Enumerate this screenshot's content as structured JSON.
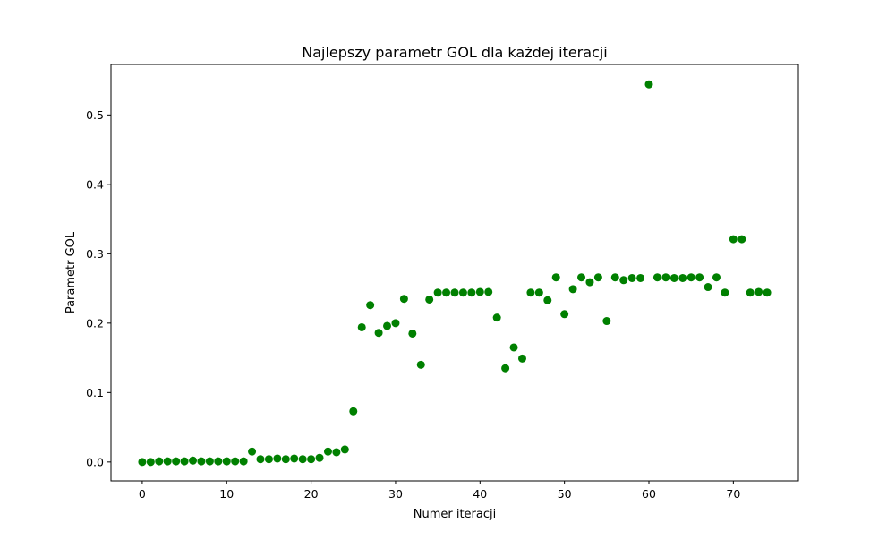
{
  "chart_data": {
    "type": "scatter",
    "title": "Najlepszy parametr GOL dla każdej iteracji",
    "xlabel": "Numer iteracji",
    "ylabel": "Parametr GOL",
    "xlim": [
      -3.7,
      77.7
    ],
    "ylim": [
      -0.0273,
      0.5727
    ],
    "xticks": [
      0,
      10,
      20,
      30,
      40,
      50,
      60,
      70
    ],
    "xtick_labels": [
      "0",
      "10",
      "20",
      "30",
      "40",
      "50",
      "60",
      "70"
    ],
    "yticks": [
      0.0,
      0.1,
      0.2,
      0.3,
      0.4,
      0.5
    ],
    "ytick_labels": [
      "0.0",
      "0.1",
      "0.2",
      "0.3",
      "0.4",
      "0.5"
    ],
    "grid": false,
    "color": "#008000",
    "series": [
      {
        "name": "GOL",
        "x": [
          0,
          1,
          2,
          3,
          4,
          5,
          6,
          7,
          8,
          9,
          10,
          11,
          12,
          13,
          14,
          15,
          16,
          17,
          18,
          19,
          20,
          21,
          22,
          23,
          24,
          25,
          26,
          27,
          28,
          29,
          30,
          31,
          32,
          33,
          34,
          35,
          36,
          37,
          38,
          39,
          40,
          41,
          42,
          43,
          44,
          45,
          46,
          47,
          48,
          49,
          50,
          51,
          52,
          53,
          54,
          55,
          56,
          57,
          58,
          59,
          60,
          61,
          62,
          63,
          64,
          65,
          66,
          67,
          68,
          69,
          70,
          71,
          72,
          73,
          74
        ],
        "y": [
          0.0,
          0.0,
          0.001,
          0.001,
          0.001,
          0.001,
          0.002,
          0.001,
          0.001,
          0.001,
          0.001,
          0.001,
          0.001,
          0.015,
          0.004,
          0.004,
          0.005,
          0.004,
          0.005,
          0.004,
          0.004,
          0.006,
          0.015,
          0.014,
          0.018,
          0.073,
          0.194,
          0.226,
          0.186,
          0.196,
          0.2,
          0.235,
          0.185,
          0.14,
          0.234,
          0.244,
          0.244,
          0.244,
          0.244,
          0.244,
          0.245,
          0.245,
          0.208,
          0.135,
          0.165,
          0.149,
          0.244,
          0.244,
          0.233,
          0.266,
          0.213,
          0.249,
          0.266,
          0.259,
          0.266,
          0.203,
          0.266,
          0.262,
          0.265,
          0.265,
          0.544,
          0.266,
          0.266,
          0.265,
          0.265,
          0.266,
          0.266,
          0.252,
          0.266,
          0.244,
          0.321,
          0.321,
          0.244,
          0.245,
          0.244
        ]
      }
    ]
  }
}
